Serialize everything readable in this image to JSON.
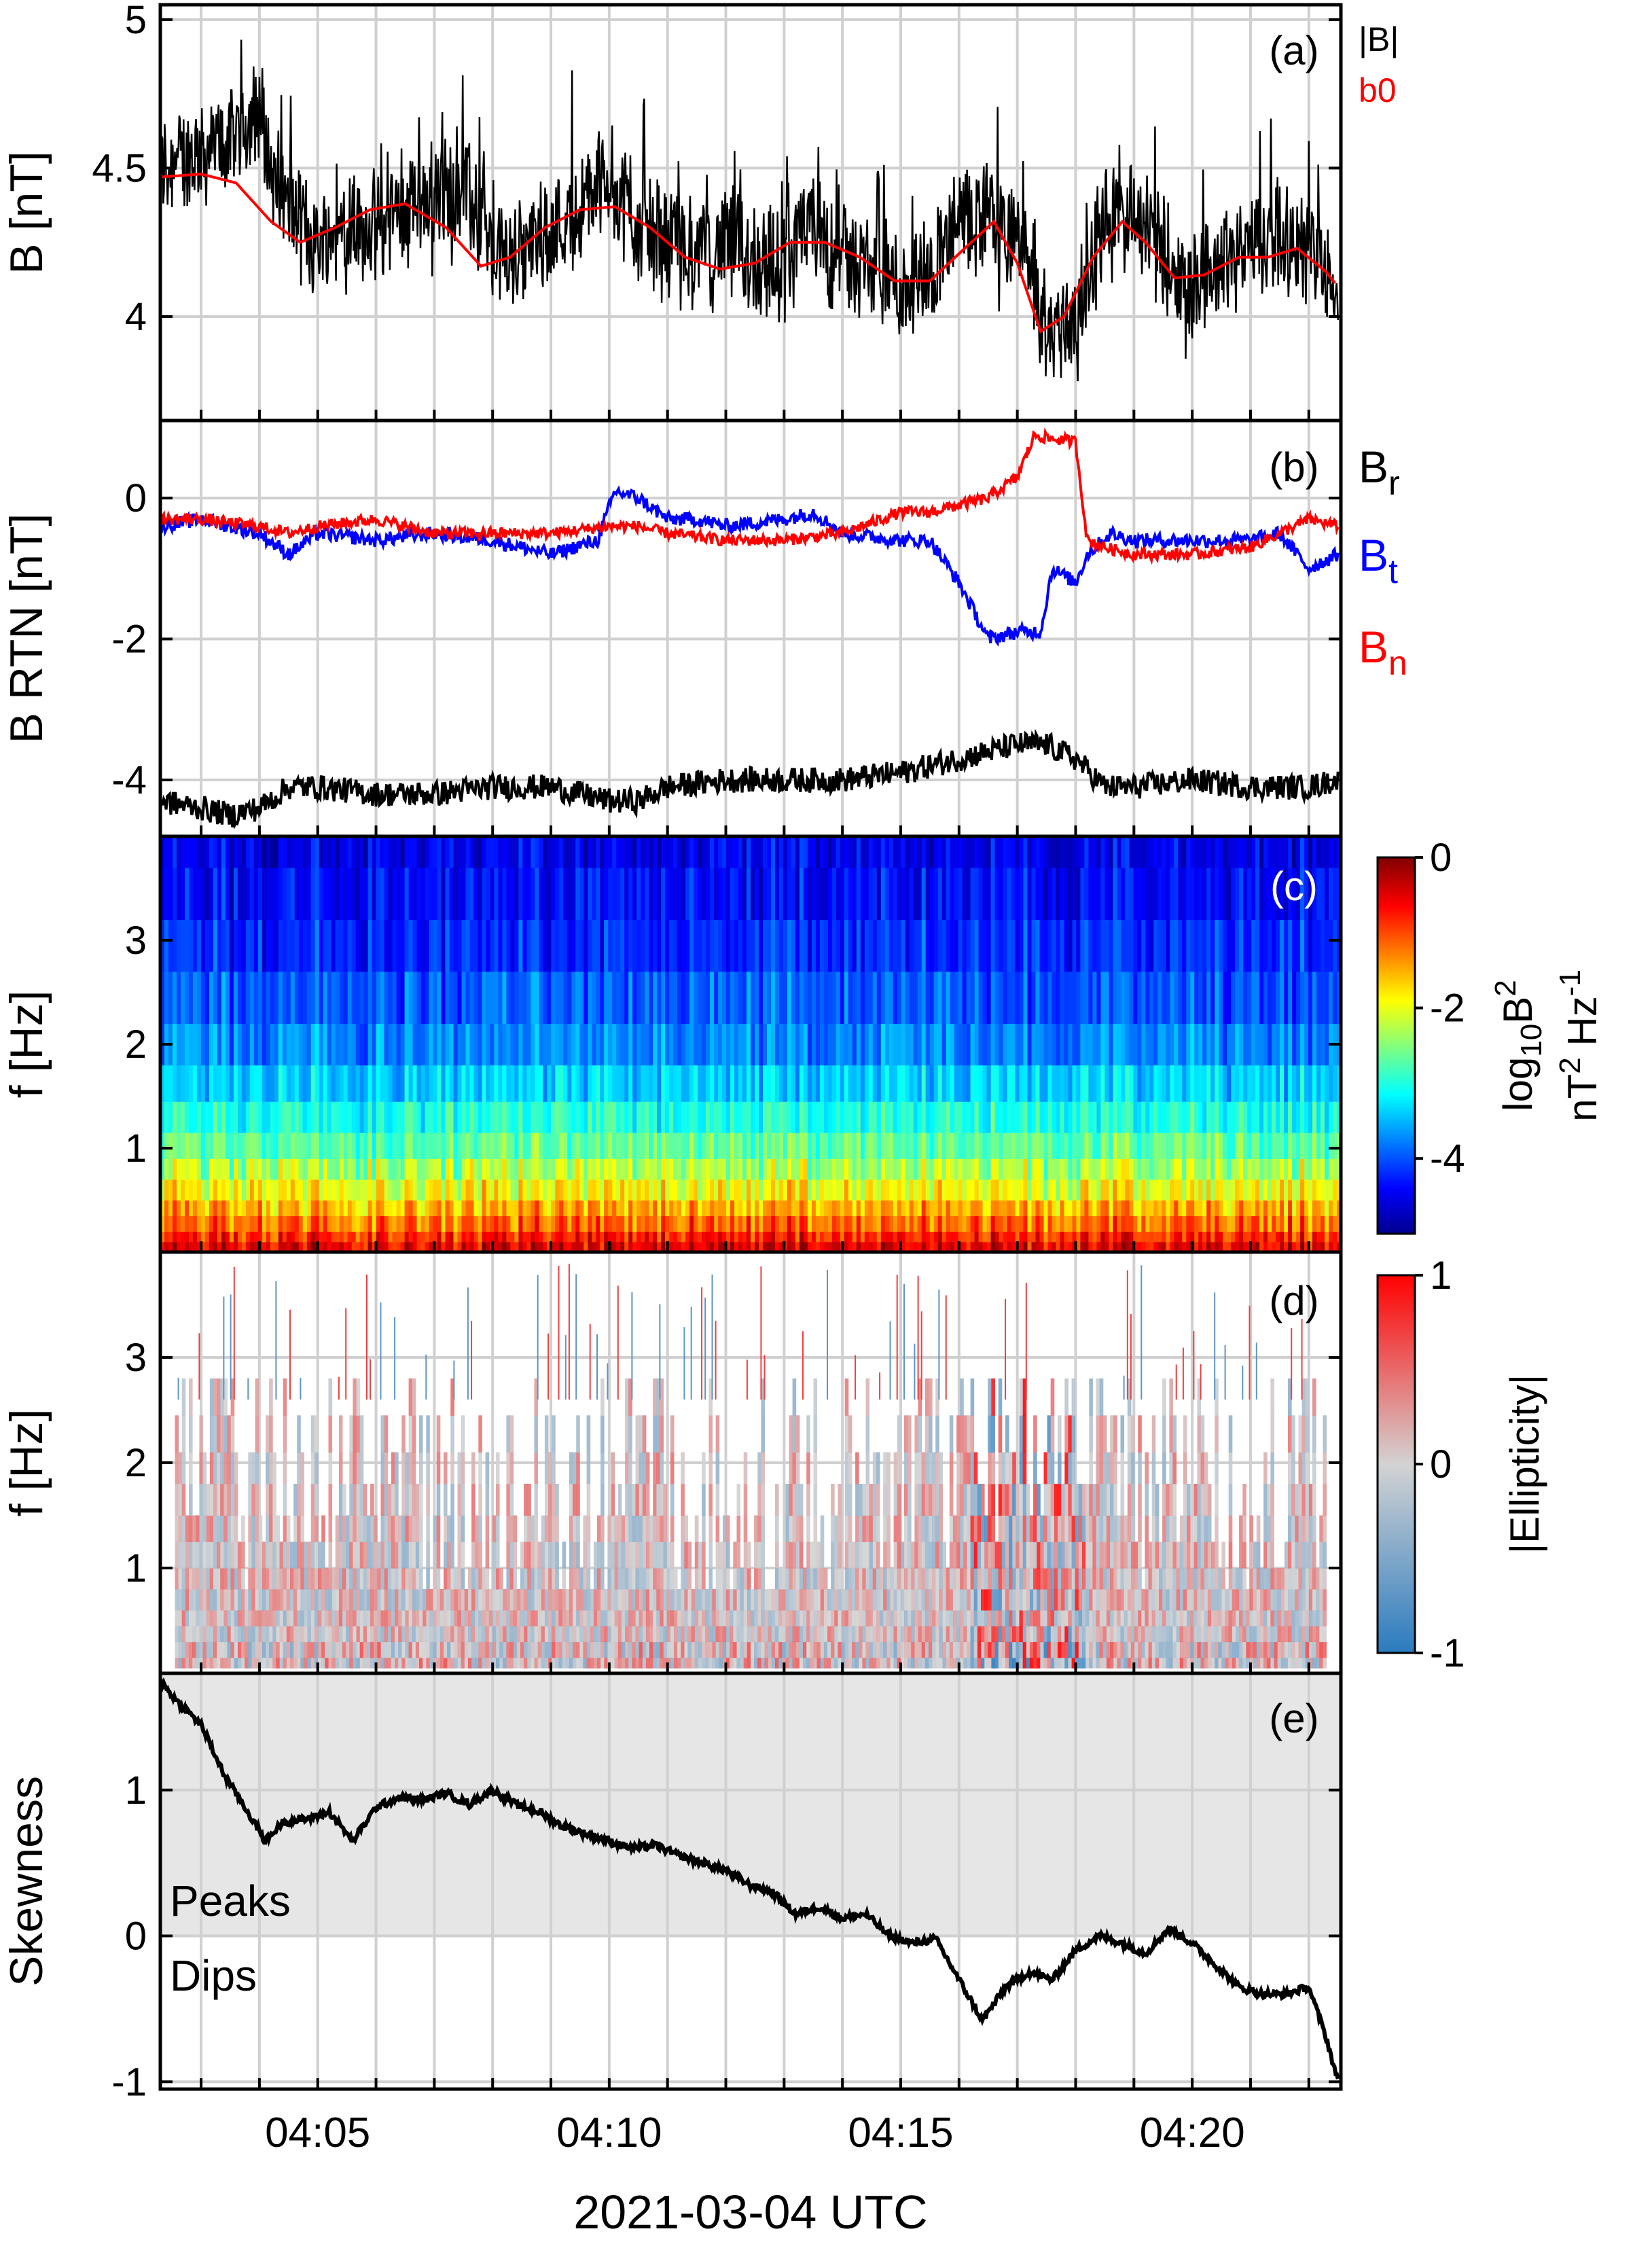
{
  "figure": {
    "xlabel": "2021-03-04 UTC",
    "x_ticks": [
      "04:05",
      "04:10",
      "04:15",
      "04:20"
    ]
  },
  "colors": {
    "black": "#000000",
    "red": "#ff0000",
    "blue": "#0000ff",
    "grid": "#d0d0d0",
    "shade": "#e6e6e6"
  },
  "chart_data": [
    {
      "panel": "(a)",
      "type": "line",
      "ylabel": "B [nT]",
      "ylim": [
        3.65,
        5.05
      ],
      "y_ticks": [
        "4",
        "4.5",
        "5"
      ],
      "x_range_min": [
        2.3,
        22.5
      ],
      "legend": [
        "|B|",
        "b0"
      ],
      "series": [
        {
          "name": "|B|",
          "color": "#000000",
          "style": "noisy",
          "t": [
            2.3,
            3,
            3.5,
            4,
            4.3,
            5,
            5.5,
            6,
            7,
            7.5,
            8,
            8.5,
            9,
            9.5,
            10,
            10.5,
            11,
            11.5,
            12,
            12.5,
            13,
            13.5,
            14,
            14.5,
            15,
            15.5,
            16,
            16.5,
            17,
            17.5,
            18,
            18.5,
            19,
            19.5,
            20,
            20.5,
            21,
            21.5,
            22,
            22.5
          ],
          "values": [
            4.5,
            4.55,
            4.6,
            4.7,
            4.4,
            4.25,
            4.3,
            4.3,
            4.4,
            4.45,
            4.2,
            4.2,
            4.3,
            4.35,
            4.5,
            4.3,
            4.25,
            4.2,
            4.25,
            4.2,
            4.15,
            4.3,
            4.2,
            4.15,
            4.1,
            4.15,
            4.3,
            4.35,
            4.25,
            3.95,
            4.0,
            4.3,
            4.35,
            4.2,
            4.1,
            4.2,
            4.25,
            4.3,
            4.2,
            4.1
          ]
        },
        {
          "name": "b0",
          "color": "#ff0000",
          "style": "smooth",
          "t": [
            2.3,
            3,
            3.6,
            4.2,
            4.7,
            5.3,
            5.9,
            6.5,
            7.2,
            7.8,
            8.3,
            8.9,
            9.5,
            10.1,
            10.7,
            11.3,
            11.9,
            12.5,
            13.1,
            13.7,
            14.3,
            14.9,
            15.5,
            16.1,
            16.6,
            17.0,
            17.4,
            17.8,
            18.3,
            18.8,
            19.2,
            19.7,
            20.2,
            20.8,
            21.3,
            21.8,
            22.3,
            22.5
          ],
          "values": [
            4.47,
            4.48,
            4.45,
            4.32,
            4.25,
            4.3,
            4.36,
            4.38,
            4.3,
            4.17,
            4.2,
            4.3,
            4.36,
            4.37,
            4.3,
            4.2,
            4.16,
            4.18,
            4.25,
            4.25,
            4.2,
            4.12,
            4.12,
            4.23,
            4.32,
            4.18,
            3.95,
            4.0,
            4.2,
            4.32,
            4.25,
            4.13,
            4.14,
            4.2,
            4.2,
            4.23,
            4.15,
            4.1
          ]
        }
      ],
      "label": "(a)"
    },
    {
      "panel": "(b)",
      "type": "line",
      "ylabel": "B RTN [nT]",
      "ylim": [
        -4.8,
        1.1
      ],
      "y_ticks": [
        "0",
        "-2",
        "-4"
      ],
      "legend": [
        "B",
        "B",
        "B"
      ],
      "legend_subscripts": [
        "r",
        "t",
        "n"
      ],
      "series": [
        {
          "name": "Br",
          "color": "#000000",
          "style": "noisy",
          "t": [
            2.3,
            3,
            3.5,
            4,
            4.5,
            5,
            6,
            7,
            8,
            9,
            10,
            10.5,
            11,
            12,
            13,
            14,
            15,
            15.5,
            16,
            16.5,
            17,
            17.5,
            18,
            18.5,
            19,
            20,
            21,
            22,
            22.5
          ],
          "values": [
            -4.3,
            -4.4,
            -4.5,
            -4.4,
            -4.1,
            -4.1,
            -4.2,
            -4.2,
            -4.1,
            -4.1,
            -4.3,
            -4.3,
            -4.1,
            -4.0,
            -4.0,
            -4.0,
            -3.9,
            -3.8,
            -3.7,
            -3.6,
            -3.5,
            -3.5,
            -3.7,
            -4.1,
            -4.1,
            -4.0,
            -4.1,
            -4.1,
            -4.0
          ]
        },
        {
          "name": "Bt",
          "color": "#0000ff",
          "style": "noisy",
          "t": [
            2.3,
            3,
            4,
            4.5,
            5,
            6,
            7,
            8,
            9,
            9.8,
            10.1,
            10.5,
            11,
            11.5,
            12,
            13,
            13.5,
            14,
            15,
            15.5,
            16,
            16.5,
            17,
            17.4,
            17.6,
            18,
            18.2,
            18.6,
            19,
            20,
            21,
            21.5,
            22,
            22.5
          ],
          "values": [
            -0.4,
            -0.3,
            -0.5,
            -0.8,
            -0.5,
            -0.6,
            -0.5,
            -0.6,
            -0.8,
            -0.6,
            0.1,
            0.0,
            -0.3,
            -0.3,
            -0.4,
            -0.3,
            -0.2,
            -0.5,
            -0.6,
            -0.6,
            -1.2,
            -2.0,
            -1.9,
            -1.9,
            -1.0,
            -1.2,
            -0.8,
            -0.5,
            -0.6,
            -0.6,
            -0.6,
            -0.5,
            -1.0,
            -0.8
          ]
        },
        {
          "name": "Bn",
          "color": "#ff0000",
          "style": "noisy",
          "t": [
            2.3,
            3,
            4,
            4.5,
            5,
            6,
            7,
            8,
            9,
            10,
            10.5,
            11,
            12,
            13,
            14,
            15,
            15.5,
            16,
            16.5,
            17,
            17.3,
            17.5,
            18,
            18.2,
            18.5,
            19,
            19.5,
            20,
            21,
            21.5,
            22,
            22.5
          ],
          "values": [
            -0.3,
            -0.3,
            -0.4,
            -0.5,
            -0.4,
            -0.3,
            -0.5,
            -0.5,
            -0.5,
            -0.4,
            -0.4,
            -0.5,
            -0.6,
            -0.6,
            -0.5,
            -0.2,
            -0.2,
            -0.1,
            0.0,
            0.3,
            0.9,
            0.85,
            0.8,
            -0.6,
            -0.7,
            -0.8,
            -0.8,
            -0.8,
            -0.7,
            -0.5,
            -0.3,
            -0.4
          ]
        }
      ],
      "label": "(b)"
    },
    {
      "panel": "(c)",
      "type": "heatmap",
      "ylabel": "f [Hz]",
      "ylim": [
        0,
        4
      ],
      "y_ticks": [
        "1",
        "2",
        "3"
      ],
      "colorbar": {
        "label_line1": "log",
        "label_sub": "10",
        "label_B": "B",
        "label_sup": "2",
        "label_line2": "nT",
        "label_line2_sup": "2",
        "label_hz": " Hz",
        "label_hz_sup": "-1",
        "ticks": [
          "0",
          "-2",
          "-4"
        ],
        "range": [
          -5,
          0
        ]
      },
      "levels_by_frequency": {
        "f": [
          0.05,
          0.3,
          0.6,
          1.0,
          1.5,
          2.0,
          2.6,
          3.2,
          3.9
        ],
        "log_power": [
          -0.5,
          -1.2,
          -1.9,
          -2.6,
          -3.2,
          -3.7,
          -4.0,
          -4.3,
          -4.5
        ]
      },
      "label": "(c)"
    },
    {
      "panel": "(d)",
      "type": "heatmap",
      "ylabel": "f [Hz]",
      "ylim": [
        0,
        4
      ],
      "y_ticks": [
        "1",
        "2",
        "3"
      ],
      "colorbar": {
        "label": "|Ellipticity|",
        "ticks": [
          "1",
          "0",
          "-1"
        ],
        "range": [
          -1,
          1
        ]
      },
      "label": "(d)"
    },
    {
      "panel": "(e)",
      "type": "line",
      "ylabel": "Skewness",
      "ylim": [
        -1.05,
        1.8
      ],
      "y_ticks": [
        "1",
        "0",
        "-1"
      ],
      "annotations": [
        "Peaks",
        "Dips"
      ],
      "series": [
        {
          "name": "Skewness",
          "color": "#000000",
          "style": "smooth",
          "t": [
            2.3,
            2.6,
            3.0,
            3.4,
            3.8,
            4.1,
            4.4,
            4.8,
            5.2,
            5.6,
            6.0,
            6.4,
            6.8,
            7.2,
            7.6,
            8.0,
            8.4,
            8.8,
            9.2,
            9.6,
            10.0,
            10.4,
            10.8,
            11.2,
            11.6,
            12.0,
            12.4,
            12.8,
            13.2,
            13.6,
            14.0,
            14.4,
            14.8,
            15.2,
            15.6,
            16.0,
            16.4,
            16.8,
            17.2,
            17.6,
            18.0,
            18.4,
            18.8,
            19.2,
            19.6,
            20.0,
            20.4,
            20.8,
            21.2,
            21.6,
            22.0,
            22.3,
            22.5
          ],
          "values": [
            1.75,
            1.6,
            1.45,
            1.1,
            0.85,
            0.65,
            0.78,
            0.8,
            0.85,
            0.65,
            0.88,
            0.95,
            0.93,
            0.98,
            0.9,
            1.0,
            0.9,
            0.85,
            0.75,
            0.7,
            0.65,
            0.6,
            0.62,
            0.55,
            0.5,
            0.45,
            0.35,
            0.3,
            0.15,
            0.2,
            0.12,
            0.15,
            0.0,
            -0.05,
            -0.02,
            -0.3,
            -0.58,
            -0.35,
            -0.25,
            -0.3,
            -0.1,
            0.0,
            -0.05,
            -0.12,
            0.05,
            -0.05,
            -0.2,
            -0.35,
            -0.4,
            -0.4,
            -0.35,
            -0.7,
            -1.0
          ]
        }
      ],
      "label": "(e)"
    }
  ]
}
